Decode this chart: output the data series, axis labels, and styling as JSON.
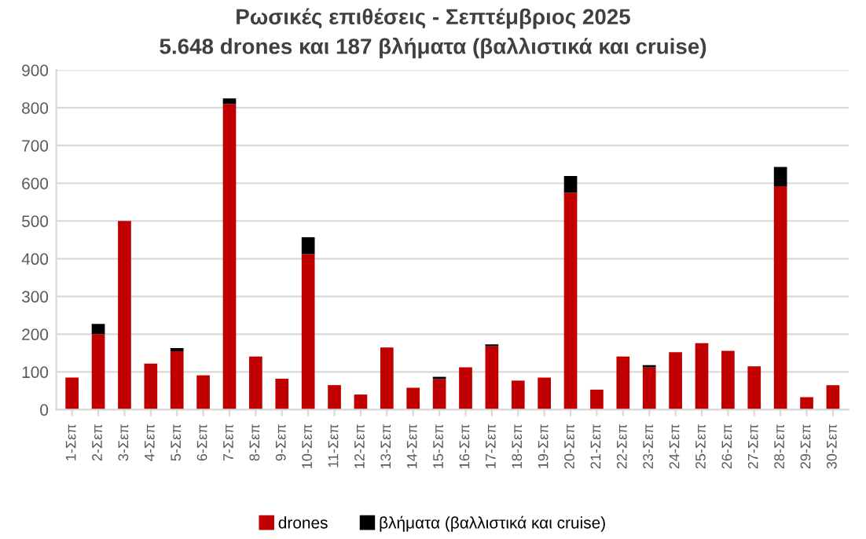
{
  "chart_data": {
    "type": "bar",
    "stacked": true,
    "title": "Ρωσικές επιθέσεις - Σεπτέμβριος 2025",
    "subtitle": "5.648 drones και 187 βλήματα (βαλλιστικά και cruise)",
    "categories": [
      "1-Σεπ",
      "2-Σεπ",
      "3-Σεπ",
      "4-Σεπ",
      "5-Σεπ",
      "6-Σεπ",
      "7-Σεπ",
      "8-Σεπ",
      "9-Σεπ",
      "10-Σεπ",
      "11-Σεπ",
      "12-Σεπ",
      "13-Σεπ",
      "14-Σεπ",
      "15-Σεπ",
      "16-Σεπ",
      "17-Σεπ",
      "18-Σεπ",
      "19-Σεπ",
      "20-Σεπ",
      "21-Σεπ",
      "22-Σεπ",
      "23-Σεπ",
      "24-Σεπ",
      "25-Σεπ",
      "26-Σεπ",
      "27-Σεπ",
      "28-Σεπ",
      "29-Σεπ",
      "30-Σεπ"
    ],
    "series": [
      {
        "name": "drones",
        "color": "#c00000",
        "values": [
          85,
          200,
          500,
          122,
          155,
          91,
          810,
          141,
          82,
          412,
          65,
          40,
          165,
          58,
          81,
          112,
          168,
          77,
          85,
          575,
          53,
          141,
          112,
          152,
          176,
          156,
          115,
          592,
          33,
          65
        ]
      },
      {
        "name": "βλήματα (βαλλιστικά και cruise)",
        "color": "#000000",
        "values": [
          0,
          27,
          0,
          0,
          8,
          0,
          15,
          0,
          0,
          45,
          0,
          0,
          0,
          0,
          6,
          0,
          5,
          0,
          0,
          44,
          0,
          0,
          6,
          0,
          0,
          0,
          0,
          51,
          0,
          0
        ]
      }
    ],
    "ylim": [
      0,
      900
    ],
    "yticks": [
      0,
      100,
      200,
      300,
      400,
      500,
      600,
      700,
      800,
      900
    ],
    "grid": "y",
    "legend": "bottom"
  }
}
